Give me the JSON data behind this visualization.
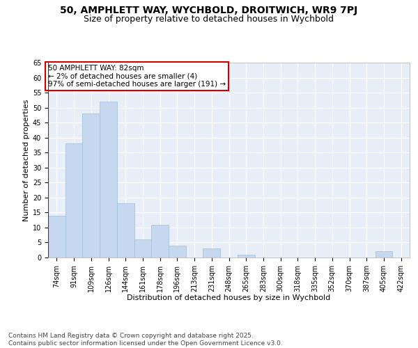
{
  "title_line1": "50, AMPHLETT WAY, WYCHBOLD, DROITWICH, WR9 7PJ",
  "title_line2": "Size of property relative to detached houses in Wychbold",
  "categories": [
    "74sqm",
    "91sqm",
    "109sqm",
    "126sqm",
    "144sqm",
    "161sqm",
    "178sqm",
    "196sqm",
    "213sqm",
    "231sqm",
    "248sqm",
    "265sqm",
    "283sqm",
    "300sqm",
    "318sqm",
    "335sqm",
    "352sqm",
    "370sqm",
    "387sqm",
    "405sqm",
    "422sqm"
  ],
  "values": [
    14,
    38,
    48,
    52,
    18,
    6,
    11,
    4,
    0,
    3,
    0,
    1,
    0,
    0,
    0,
    0,
    0,
    0,
    0,
    2,
    0
  ],
  "bar_color": "#c5d8ef",
  "bar_edge_color": "#a0bcd8",
  "xlabel": "Distribution of detached houses by size in Wychbold",
  "ylabel": "Number of detached properties",
  "ylim_max": 65,
  "yticks": [
    0,
    5,
    10,
    15,
    20,
    25,
    30,
    35,
    40,
    45,
    50,
    55,
    60,
    65
  ],
  "annotation_title": "50 AMPHLETT WAY: 82sqm",
  "annotation_line2": "← 2% of detached houses are smaller (4)",
  "annotation_line3": "97% of semi-detached houses are larger (191) →",
  "footer_line1": "Contains HM Land Registry data © Crown copyright and database right 2025.",
  "footer_line2": "Contains public sector information licensed under the Open Government Licence v3.0.",
  "fig_bg_color": "#ffffff",
  "plot_bg_color": "#e8eef8",
  "grid_color": "#ffffff",
  "ann_edge_color": "#cc0000",
  "red_line_color": "#cc0000",
  "title_fontsize": 10,
  "subtitle_fontsize": 9,
  "axis_label_fontsize": 8,
  "tick_fontsize": 7,
  "annotation_fontsize": 7.5,
  "footer_fontsize": 6.5
}
